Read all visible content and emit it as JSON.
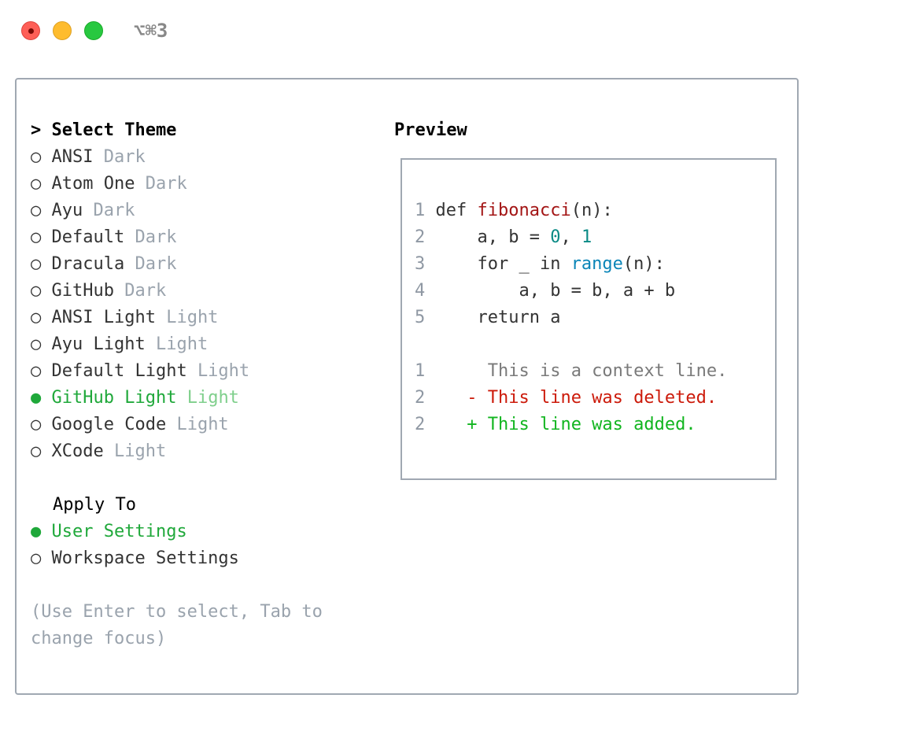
{
  "window": {
    "shortcut": "⌥⌘3"
  },
  "theme_list": {
    "title": "> Select Theme",
    "items": [
      {
        "marker": "○",
        "name": "ANSI",
        "variant": "Dark",
        "selected": false
      },
      {
        "marker": "○",
        "name": "Atom One",
        "variant": "Dark",
        "selected": false
      },
      {
        "marker": "○",
        "name": "Ayu",
        "variant": "Dark",
        "selected": false
      },
      {
        "marker": "○",
        "name": "Default",
        "variant": "Dark",
        "selected": false
      },
      {
        "marker": "○",
        "name": "Dracula",
        "variant": "Dark",
        "selected": false
      },
      {
        "marker": "○",
        "name": "GitHub",
        "variant": "Dark",
        "selected": false
      },
      {
        "marker": "○",
        "name": "ANSI Light",
        "variant": "Light",
        "selected": false
      },
      {
        "marker": "○",
        "name": "Ayu Light",
        "variant": "Light",
        "selected": false
      },
      {
        "marker": "○",
        "name": "Default Light",
        "variant": "Light",
        "selected": false
      },
      {
        "marker": "●",
        "name": "GitHub Light",
        "variant": "Light",
        "selected": true
      },
      {
        "marker": "○",
        "name": "Google Code",
        "variant": "Light",
        "selected": false
      },
      {
        "marker": "○",
        "name": "XCode",
        "variant": "Light",
        "selected": false
      }
    ]
  },
  "apply_to": {
    "title": "Apply To",
    "items": [
      {
        "marker": "●",
        "label": "User Settings",
        "selected": true
      },
      {
        "marker": "○",
        "label": "Workspace Settings",
        "selected": false
      }
    ]
  },
  "hint": [
    "(Use Enter to select, Tab to",
    "change focus)"
  ],
  "preview": {
    "title": "Preview",
    "code": [
      {
        "n": "1",
        "parts": [
          [
            "txt",
            "def "
          ],
          [
            "kw-fn",
            "fibonacci"
          ],
          [
            "txt",
            "(n):"
          ]
        ]
      },
      {
        "n": "2",
        "parts": [
          [
            "txt",
            "    a, b = "
          ],
          [
            "num",
            "0"
          ],
          [
            "txt",
            ", "
          ],
          [
            "num",
            "1"
          ]
        ]
      },
      {
        "n": "3",
        "parts": [
          [
            "txt",
            "    for _ in "
          ],
          [
            "bi",
            "range"
          ],
          [
            "txt",
            "(n):"
          ]
        ]
      },
      {
        "n": "4",
        "parts": [
          [
            "txt",
            "        a, b = b, a + b"
          ]
        ]
      },
      {
        "n": "5",
        "parts": [
          [
            "txt",
            "    return a"
          ]
        ]
      }
    ],
    "diff": [
      {
        "n": "1",
        "prefix": " ",
        "text": "This is a context line.",
        "type": "ctx"
      },
      {
        "n": "2",
        "prefix": "-",
        "text": "This line was deleted.",
        "type": "del"
      },
      {
        "n": "2",
        "prefix": "+",
        "text": "This line was added.",
        "type": "add"
      }
    ]
  },
  "colors": {
    "selected": "#1fa83a",
    "muted": "#9aa3ad",
    "deleted": "#cc1a0a",
    "added": "#11b51f",
    "function": "#a31515",
    "number": "#098a85",
    "builtin": "#0a85b8"
  }
}
